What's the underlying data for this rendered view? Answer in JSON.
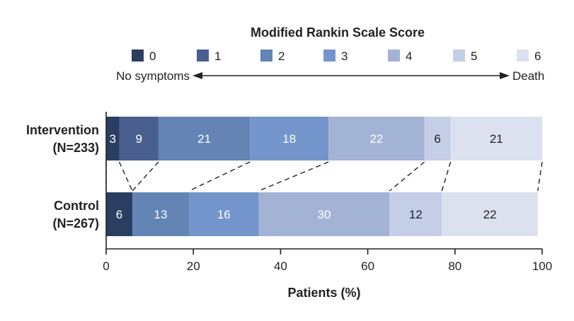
{
  "chart_data": {
    "type": "bar",
    "orientation": "horizontal",
    "stacked": true,
    "title": "Modified Rankin Scale Score",
    "xlabel": "Patients (%)",
    "xlim": [
      0,
      100
    ],
    "xticks": [
      0,
      20,
      40,
      60,
      80,
      100
    ],
    "legend_placement": "top",
    "scale_anchor_low": "No symptoms",
    "scale_anchor_high": "Death",
    "categories": [
      {
        "label": "Intervention",
        "n_label": "(N=233)"
      },
      {
        "label": "Control",
        "n_label": "(N=267)"
      }
    ],
    "series": [
      {
        "name": "0",
        "color": "#2b3e61",
        "values": [
          3,
          6
        ]
      },
      {
        "name": "1",
        "color": "#495f8f",
        "values": [
          9,
          0
        ]
      },
      {
        "name": "2",
        "color": "#6384b4",
        "values": [
          21,
          13
        ]
      },
      {
        "name": "3",
        "color": "#7395cb",
        "values": [
          18,
          16
        ]
      },
      {
        "name": "4",
        "color": "#a3b3d6",
        "values": [
          22,
          30
        ]
      },
      {
        "name": "5",
        "color": "#c4cee6",
        "values": [
          6,
          12
        ]
      },
      {
        "name": "6",
        "color": "#dbe1ef",
        "values": [
          21,
          22
        ]
      }
    ]
  }
}
